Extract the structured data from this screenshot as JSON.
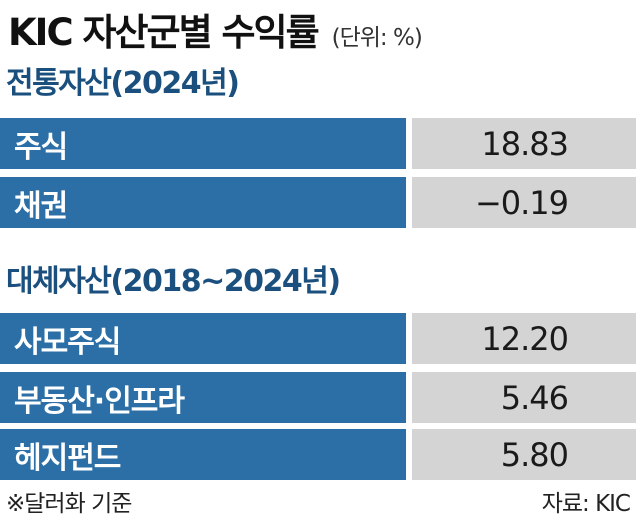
{
  "header": {
    "title": "KIC 자산군별 수익률",
    "unit": "(단위: %)"
  },
  "chart_data": {
    "type": "table",
    "title": "KIC 자산군별 수익률",
    "unit": "(단위: %)",
    "sections": [
      {
        "title": "전통자산(2024년)",
        "rows": [
          {
            "label": "주식",
            "value": "18.83"
          },
          {
            "label": "채권",
            "value": "−0.19"
          }
        ]
      },
      {
        "title": "대체자산(2018~2024년)",
        "rows": [
          {
            "label": "사모주식",
            "value": "12.20"
          },
          {
            "label": "부동산·인프라",
            "value": "5.46"
          },
          {
            "label": "헤지펀드",
            "value": "5.80"
          }
        ]
      }
    ],
    "colors": {
      "label_bg": "#2b6fa6",
      "value_bg": "#d4d4d4",
      "section_title": "#1a4f7e"
    }
  },
  "footer": {
    "note": "※달러화 기준",
    "source": "자료: KIC"
  }
}
